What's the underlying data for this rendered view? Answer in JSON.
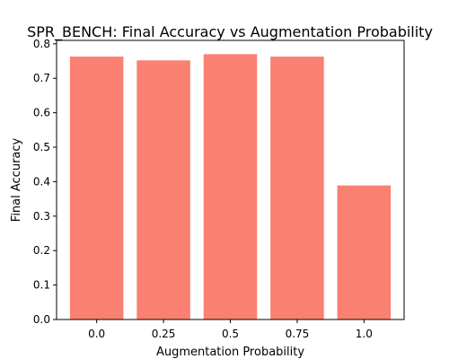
{
  "chart_data": {
    "type": "bar",
    "title": "SPR_BENCH: Final Accuracy vs Augmentation Probability",
    "xlabel": "Augmentation Probability",
    "ylabel": "Final Accuracy",
    "categories": [
      "0.0",
      "0.25",
      "0.5",
      "0.75",
      "1.0"
    ],
    "values": [
      0.763,
      0.752,
      0.77,
      0.763,
      0.389
    ],
    "ylim": [
      0,
      0.81
    ],
    "yticks": [
      "0.0",
      "0.1",
      "0.2",
      "0.3",
      "0.4",
      "0.5",
      "0.6",
      "0.7",
      "0.8"
    ],
    "bar_color": "#fa8072",
    "grid": false,
    "legend": "none"
  }
}
